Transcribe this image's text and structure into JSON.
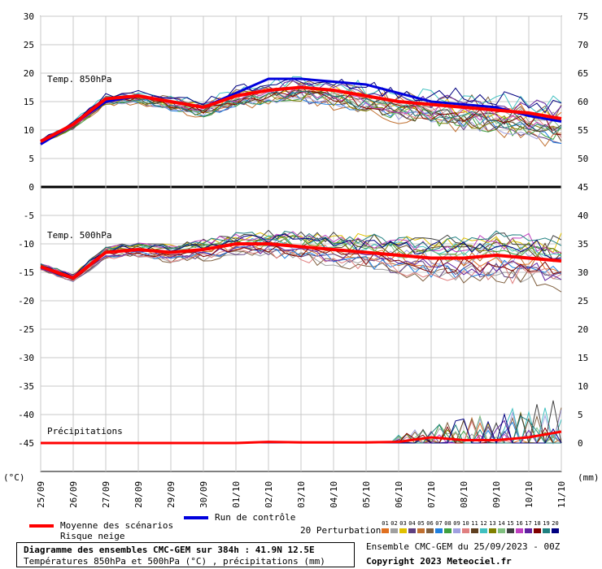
{
  "chart_data": {
    "type": "line",
    "x_dates": [
      "25/09",
      "26/09",
      "27/09",
      "28/09",
      "29/09",
      "30/09",
      "01/10",
      "02/10",
      "03/10",
      "04/10",
      "05/10",
      "06/10",
      "07/10",
      "08/10",
      "09/10",
      "10/10",
      "11/10"
    ],
    "left_axis": {
      "unit": "(°C)",
      "ticks": [
        30,
        25,
        20,
        15,
        10,
        5,
        0,
        -5,
        -10,
        -15,
        -20,
        -25,
        -30,
        -35,
        -40,
        -45
      ],
      "range": [
        -50,
        30
      ]
    },
    "right_axis_temp": {
      "ticks": [
        75,
        70,
        65,
        60,
        55,
        50,
        45,
        40,
        35,
        30,
        25
      ]
    },
    "right_axis_precip": {
      "unit": "(mm)",
      "ticks": [
        20,
        15,
        10,
        5,
        0
      ]
    },
    "panels": {
      "t850": {
        "label": "Temp. 850hPa",
        "mean": [
          8,
          11,
          15.5,
          16,
          15,
          14,
          16,
          17,
          17.5,
          17,
          16,
          15,
          14.5,
          14,
          13.5,
          13,
          12
        ],
        "control": [
          7.5,
          11,
          15,
          16,
          15,
          14,
          16.5,
          19,
          19,
          18.5,
          18,
          16.5,
          15,
          14.5,
          14,
          12.5,
          11.5
        ]
      },
      "t500": {
        "label": "Temp. 500hPa",
        "mean": [
          -14,
          -16,
          -11.5,
          -11,
          -11.5,
          -11,
          -10,
          -10,
          -10.5,
          -11,
          -11.5,
          -12,
          -12.5,
          -12.5,
          -12,
          -12.5,
          -13
        ]
      },
      "precip": {
        "label": "Précipitations",
        "mean": [
          0,
          0,
          0,
          0,
          0,
          0,
          0,
          0.2,
          0.1,
          0.1,
          0.1,
          0.2,
          1,
          0.5,
          0.5,
          1,
          2
        ]
      }
    }
  },
  "legend": {
    "mean_label": "Moyenne des scénarios",
    "snow_label": "Risque neige",
    "control_label": "Run de contrôle",
    "perturbations_label": "20 Perturbations",
    "perturbation_numbers": [
      "01",
      "02",
      "03",
      "04",
      "05",
      "06",
      "07",
      "08",
      "09",
      "10",
      "11",
      "12",
      "13",
      "14",
      "15",
      "16",
      "17",
      "18",
      "19",
      "20"
    ],
    "perturbation_colors": [
      "#e07020",
      "#a0a0a0",
      "#e0c000",
      "#604080",
      "#c07030",
      "#806040",
      "#2080e0",
      "#40a040",
      "#a0a0e0",
      "#e08080",
      "#604020",
      "#40c0c0",
      "#808000",
      "#80c080",
      "#404040",
      "#c040c0",
      "#6020a0",
      "#800000",
      "#208080",
      "#000080"
    ],
    "mean_color": "#ff0000",
    "control_color": "#0000dd"
  },
  "footer": {
    "title": "Diagramme des ensembles CMC-GEM sur 384h : 41.9N 12.5E",
    "subtitle": "Températures 850hPa et 500hPa (°C) , précipitations (mm)",
    "run": "Ensemble CMC-GEM du 25/09/2023 - 00Z",
    "copyright": "Copyright 2023 Meteociel.fr"
  }
}
